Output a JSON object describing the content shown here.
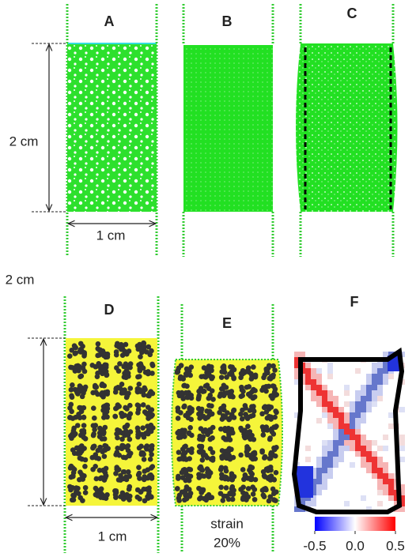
{
  "panels": [
    {
      "label": "A"
    },
    {
      "label": "B"
    },
    {
      "label": "C"
    },
    {
      "label": "D"
    },
    {
      "label": "E"
    },
    {
      "label": "F"
    }
  ],
  "dimensions": {
    "top_height": "2 cm",
    "top_width": "1 cm",
    "bottom_height": "2 cm",
    "bottom_width": "1 cm"
  },
  "annotation": {
    "line1": "strain",
    "line2": "20%"
  },
  "colorbar": {
    "lim": [
      -0.5,
      0.5
    ],
    "ticks": [
      -0.5,
      {
        "value": 0,
        "label": "0.0"
      },
      0.5
    ]
  }
}
